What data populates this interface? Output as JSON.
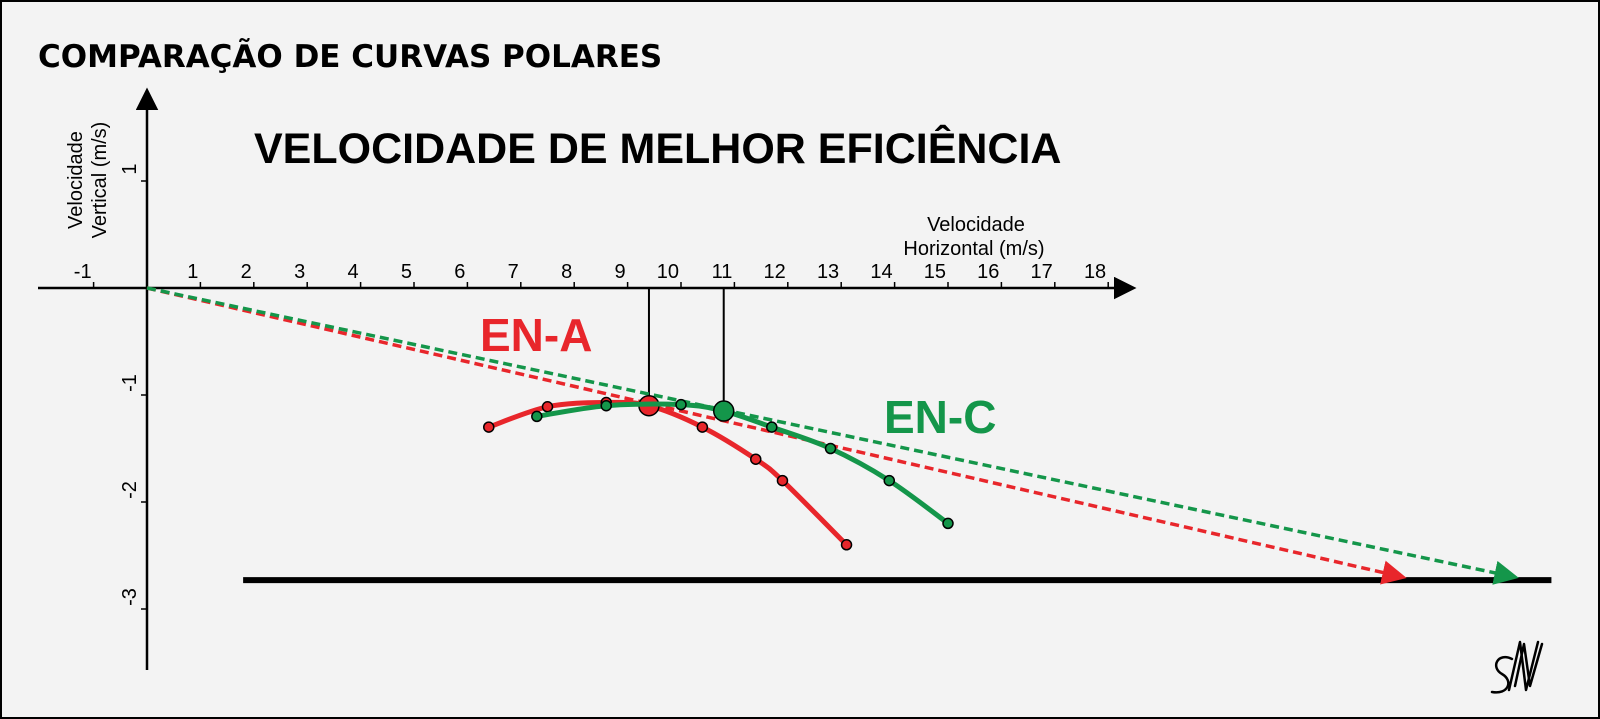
{
  "chart_data": {
    "type": "line",
    "title": "COMPARAÇÃO DE CURVAS POLARES",
    "subtitle": "VELOCIDADE DE MELHOR EFICIÊNCIA",
    "xlabel_line1": "Velocidade",
    "xlabel_line2": "Horizontal (m/s)",
    "ylabel_line1": "Velocidade",
    "ylabel_line2": "Vertical (m/s)",
    "x_ticks": [
      -1,
      1,
      2,
      3,
      4,
      5,
      6,
      7,
      8,
      9,
      10,
      11,
      12,
      13,
      14,
      15,
      16,
      17,
      18
    ],
    "y_ticks": [
      1,
      -1,
      -2,
      -3
    ],
    "xlim": [
      -2.6,
      18.6
    ],
    "ylim": [
      -3.6,
      1.9
    ],
    "grid": false,
    "series": [
      {
        "name": "EN-A",
        "color": "#e8262b",
        "points": [
          {
            "x": 6.4,
            "y": -1.3
          },
          {
            "x": 7.5,
            "y": -1.11
          },
          {
            "x": 8.6,
            "y": -1.07
          },
          {
            "x": 9.4,
            "y": -1.1
          },
          {
            "x": 10.4,
            "y": -1.3
          },
          {
            "x": 11.4,
            "y": -1.6
          },
          {
            "x": 11.9,
            "y": -1.8
          },
          {
            "x": 13.1,
            "y": -2.4
          }
        ],
        "best_glide": {
          "x": 9.4,
          "y": -1.1
        },
        "glide_line_end": {
          "x": 23.5,
          "y": -2.7
        }
      },
      {
        "name": "EN-C",
        "color": "#14964a",
        "points": [
          {
            "x": 7.3,
            "y": -1.2
          },
          {
            "x": 8.6,
            "y": -1.1
          },
          {
            "x": 10.0,
            "y": -1.09
          },
          {
            "x": 10.8,
            "y": -1.15
          },
          {
            "x": 11.7,
            "y": -1.3
          },
          {
            "x": 12.8,
            "y": -1.5
          },
          {
            "x": 13.9,
            "y": -1.8
          },
          {
            "x": 15.0,
            "y": -2.2
          }
        ],
        "best_glide": {
          "x": 10.8,
          "y": -1.15
        },
        "glide_line_end": {
          "x": 25.6,
          "y": -2.7
        }
      }
    ],
    "reference_line": {
      "x_start": 1.8,
      "x_end": 26.3,
      "y": -2.73,
      "color": "#000000"
    }
  },
  "signature": "SW"
}
